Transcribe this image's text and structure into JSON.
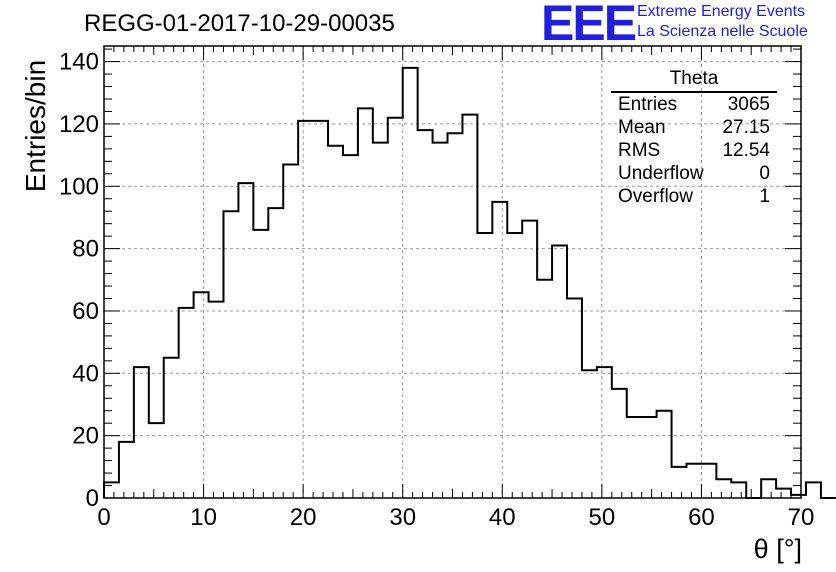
{
  "title": "REGG-01-2017-10-29-00035",
  "logo": {
    "mark": "EEE",
    "line1": "Extreme Energy Events",
    "line2": "La Scienza nelle Scuole",
    "color": "#1f1fe0"
  },
  "stats_box": {
    "title": "Theta",
    "rows": [
      {
        "label": "Entries",
        "value": "3065"
      },
      {
        "label": "Mean",
        "value": "27.15"
      },
      {
        "label": "RMS",
        "value": "12.54"
      },
      {
        "label": "Underflow",
        "value": "0"
      },
      {
        "label": "Overflow",
        "value": "1"
      }
    ]
  },
  "chart_data": {
    "type": "histogram",
    "xlabel": "θ [°]",
    "ylabel": "Entries/bin",
    "xlim": [
      0,
      70
    ],
    "ylim": [
      0,
      145
    ],
    "x_ticks": [
      0,
      10,
      20,
      30,
      40,
      50,
      60,
      70
    ],
    "y_ticks": [
      0,
      20,
      40,
      60,
      80,
      100,
      120,
      140
    ],
    "grid": true,
    "bin_width": 1.5,
    "bin_edges_start": 0,
    "values": [
      5,
      18,
      42,
      24,
      45,
      61,
      66,
      63,
      92,
      101,
      86,
      93,
      107,
      121,
      121,
      113,
      110,
      125,
      114,
      122,
      138,
      118,
      114,
      117,
      123,
      85,
      95,
      85,
      89,
      70,
      81,
      64,
      41,
      42,
      35,
      26,
      26,
      28,
      10,
      11,
      11,
      6,
      5,
      0,
      6,
      3,
      1,
      5,
      0
    ]
  }
}
